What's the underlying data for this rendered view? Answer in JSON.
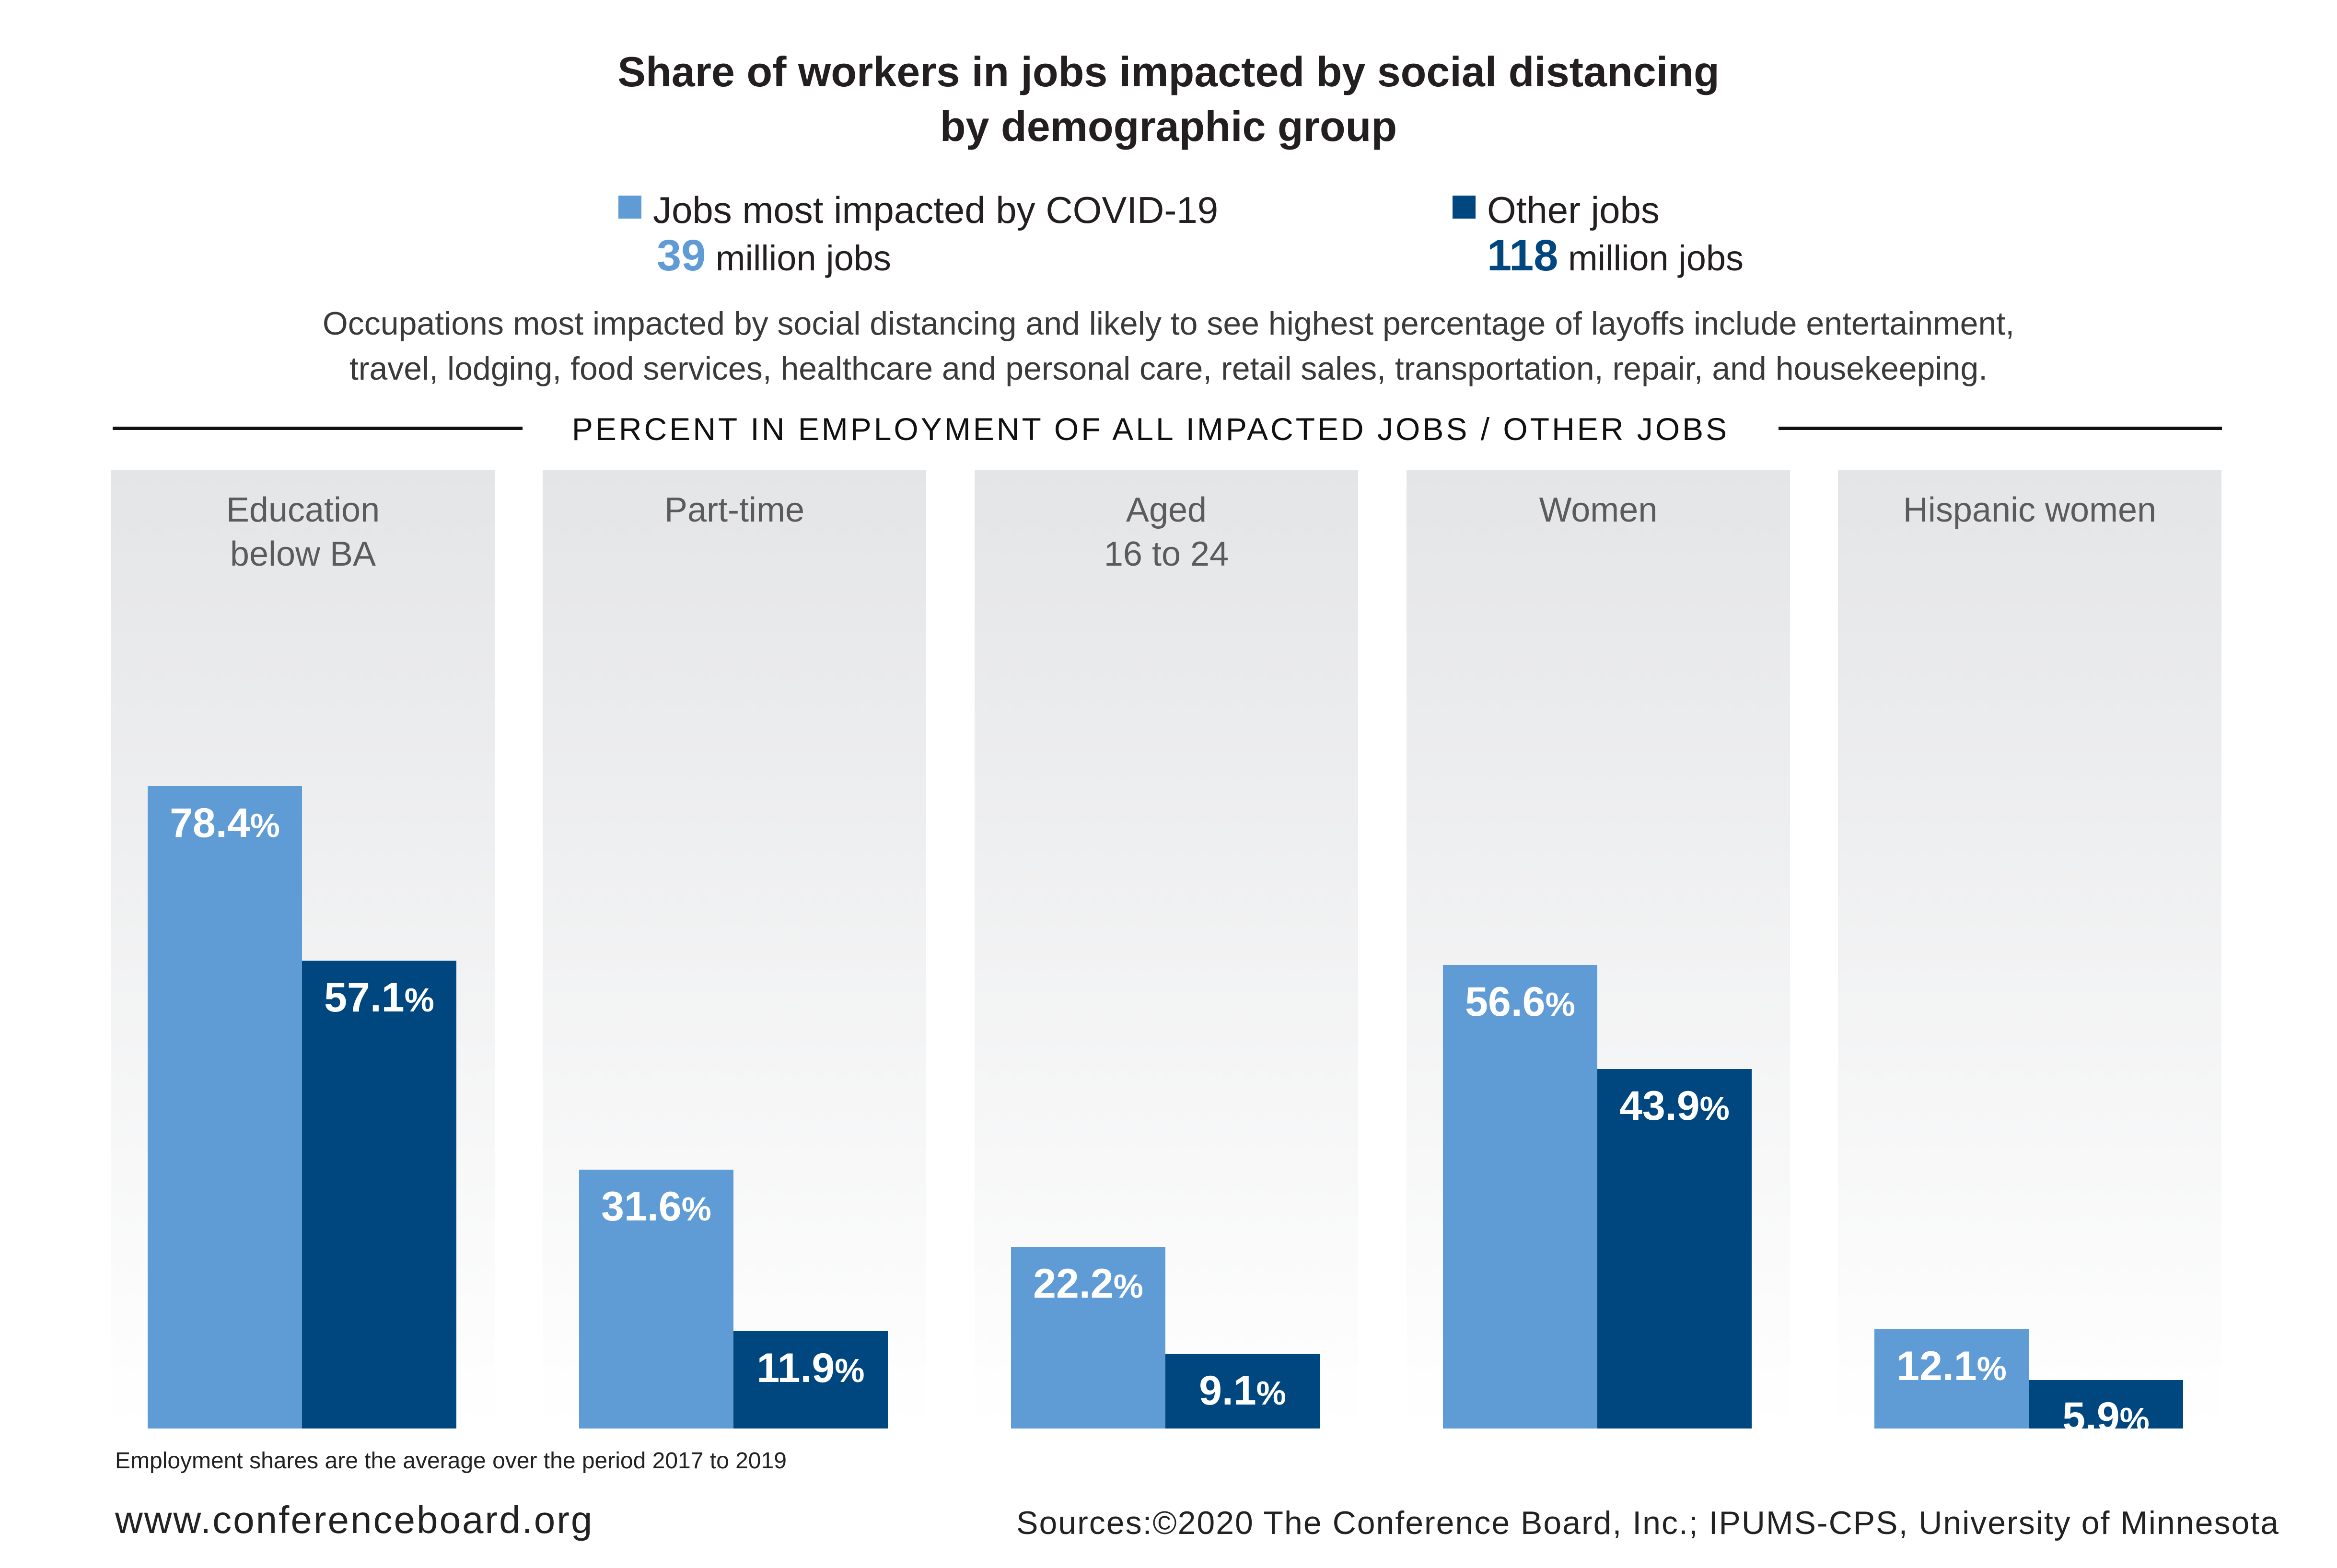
{
  "chart_data": {
    "type": "bar",
    "title": "Share of workers in jobs impacted by social distancing",
    "subtitle": "by demographic group",
    "categories": [
      "Education\nbelow BA",
      "Part-time",
      "Aged\n16 to 24",
      "Women",
      "Hispanic women"
    ],
    "series": [
      {
        "name": "Jobs most impacted by COVID-19",
        "values": [
          78.4,
          31.6,
          22.2,
          56.6,
          12.1
        ],
        "labels": [
          "78.4",
          "31.6",
          "22.2",
          "56.6",
          "12.1"
        ],
        "color": "#5f9bd5",
        "count_number": "39",
        "count_text": "million jobs"
      },
      {
        "name": "Other jobs",
        "values": [
          57.1,
          11.9,
          9.1,
          43.9,
          5.9
        ],
        "labels": [
          "57.1",
          "11.9",
          "9.1",
          "43.9",
          "5.9"
        ],
        "color": "#00467f",
        "count_number": "118",
        "count_text": "million jobs"
      }
    ],
    "percent_sign": "%",
    "ylim": [
      0,
      100
    ],
    "grid": false,
    "legend_position": "top",
    "axis_header": "PERCENT IN EMPLOYMENT OF ALL IMPACTED JOBS / OTHER JOBS"
  },
  "note_lines": [
    "Occupations most impacted by social distancing and likely to see highest percentage of layoffs include entertainment,",
    "travel, lodging, food services, healthcare and personal care, retail sales, transportation, repair, and housekeeping."
  ],
  "footnote": "Employment shares are the average over the period 2017 to 2019",
  "website": "www.conferenceboard.org",
  "sources": "Sources:©2020 The Conference Board, Inc.; IPUMS-CPS, University of Minnesota"
}
